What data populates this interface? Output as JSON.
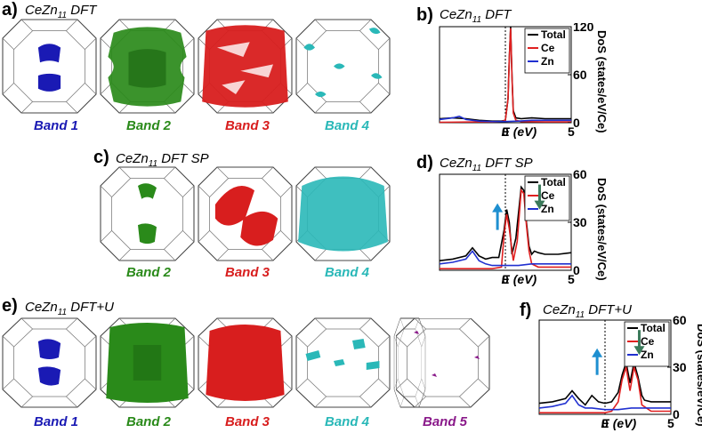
{
  "colors": {
    "band1": "#1a1ab4",
    "band2": "#2a8a1a",
    "band3": "#d81e1e",
    "band4": "#2ab8b8",
    "band5": "#8a1a8a",
    "total": "#000000",
    "ce": "#e02020",
    "zn": "#2030d0",
    "arrow_up": "#1e8fd0",
    "arrow_down": "#3a7a5a"
  },
  "panels": {
    "a": {
      "label": "a)",
      "title_pre": "CeZn",
      "title_sub": "11",
      "title_post": " DFT",
      "bands": [
        "Band 1",
        "Band 2",
        "Band 3",
        "Band 4"
      ]
    },
    "c": {
      "label": "c)",
      "title_pre": "CeZn",
      "title_sub": "11",
      "title_post": " DFT SP",
      "bands": [
        "Band 2",
        "Band 3",
        "Band 4"
      ]
    },
    "e": {
      "label": "e)",
      "title_pre": "CeZn",
      "title_sub": "11",
      "title_post": " DFT+U",
      "bands": [
        "Band 1",
        "Band 2",
        "Band 3",
        "Band 4",
        "Band 5"
      ]
    },
    "b": {
      "label": "b)",
      "title_pre": "CeZn",
      "title_sub": "11",
      "title_post": " DFT"
    },
    "d": {
      "label": "d)",
      "title_pre": "CeZn",
      "title_sub": "11",
      "title_post": " DFT SP"
    },
    "f": {
      "label": "f)",
      "title_pre": "CeZn",
      "title_sub": "11",
      "title_post": " DFT+U"
    }
  },
  "chart_data": [
    {
      "panel": "b",
      "type": "line",
      "xlabel": "E (eV)",
      "ylabel": "DoS (states/eV/Ce)",
      "xlim": [
        -5,
        5
      ],
      "ylim": [
        0,
        120
      ],
      "xticks": [
        "0",
        "5"
      ],
      "yticks": [
        "0",
        "60",
        "120"
      ],
      "legend": [
        "Total",
        "Ce",
        "Zn"
      ],
      "legend_position": "top-right",
      "fermi_line_x": 0,
      "series": [
        {
          "name": "Total",
          "x": [
            -5,
            -4,
            -3,
            -2,
            -1,
            -0.3,
            0,
            0.2,
            0.3,
            0.4,
            0.5,
            0.6,
            0.8,
            1.2,
            2,
            3,
            4,
            5
          ],
          "values": [
            5,
            6,
            5,
            3,
            2,
            2,
            3,
            30,
            80,
            120,
            60,
            15,
            6,
            5,
            6,
            5,
            5,
            5
          ]
        },
        {
          "name": "Ce",
          "x": [
            -5,
            -2,
            -1,
            -0.3,
            0,
            0.2,
            0.3,
            0.4,
            0.5,
            0.6,
            0.8,
            1.2,
            3,
            5
          ],
          "values": [
            0.5,
            1,
            1,
            1.5,
            3,
            30,
            80,
            118,
            58,
            12,
            3,
            1.5,
            1,
            1
          ]
        },
        {
          "name": "Zn",
          "x": [
            -5,
            -4,
            -3.5,
            -3,
            -2,
            -1,
            0,
            1,
            2,
            3,
            4,
            5
          ],
          "values": [
            4,
            6,
            8,
            4,
            2,
            1.5,
            1.5,
            2,
            3,
            3,
            3,
            3
          ]
        }
      ]
    },
    {
      "panel": "d",
      "type": "line",
      "xlabel": "E (eV)",
      "ylabel": "DoS (states/eV/Ce)",
      "xlim": [
        -5,
        5
      ],
      "ylim": [
        0,
        60
      ],
      "xticks": [
        "0",
        "5"
      ],
      "yticks": [
        "0",
        "30",
        "60"
      ],
      "legend": [
        "Total",
        "Ce",
        "Zn"
      ],
      "legend_position": "top-right",
      "fermi_line_x": 0,
      "arrows": [
        "up",
        "down"
      ],
      "series": [
        {
          "name": "Total",
          "x": [
            -5,
            -4,
            -3,
            -2.5,
            -2,
            -1.5,
            -1,
            -0.5,
            -0.1,
            0.1,
            0.3,
            0.5,
            0.8,
            1.2,
            1.4,
            1.6,
            1.8,
            2,
            2.2,
            2.5,
            3,
            4,
            5
          ],
          "values": [
            6,
            7,
            9,
            14,
            9,
            7,
            8,
            8,
            25,
            38,
            30,
            10,
            20,
            52,
            50,
            30,
            15,
            10,
            12,
            11,
            10,
            10,
            11
          ]
        },
        {
          "name": "Ce",
          "x": [
            -5,
            -1,
            -0.3,
            -0.1,
            0.1,
            0.3,
            0.6,
            0.9,
            1.2,
            1.4,
            1.6,
            1.8,
            2,
            2.5,
            5
          ],
          "values": [
            1,
            1,
            2,
            22,
            35,
            26,
            6,
            18,
            50,
            48,
            28,
            12,
            4,
            2,
            2
          ]
        },
        {
          "name": "Zn",
          "x": [
            -5,
            -4,
            -3,
            -2.5,
            -2,
            -1.5,
            -1,
            0,
            1,
            2,
            3,
            4,
            5
          ],
          "values": [
            4,
            5,
            7,
            12,
            6,
            4,
            3,
            3,
            3,
            4,
            4,
            4,
            4
          ]
        }
      ]
    },
    {
      "panel": "f",
      "type": "line",
      "xlabel": "E (eV)",
      "ylabel": "DoS (states/eV/Ce)",
      "xlim": [
        -5,
        5
      ],
      "ylim": [
        0,
        60
      ],
      "xticks": [
        "0",
        "5"
      ],
      "yticks": [
        "0",
        "30",
        "60"
      ],
      "legend": [
        "Total",
        "Ce",
        "Zn"
      ],
      "legend_position": "top-right",
      "fermi_line_x": 0,
      "arrows": [
        "up",
        "down"
      ],
      "series": [
        {
          "name": "Total",
          "x": [
            -5,
            -4,
            -3,
            -2.5,
            -2,
            -1.5,
            -1,
            -0.5,
            0,
            0.5,
            1,
            1.3,
            1.6,
            1.9,
            2.2,
            2.5,
            2.8,
            3,
            3.5,
            4,
            5
          ],
          "values": [
            7,
            8,
            10,
            15,
            10,
            6,
            12,
            8,
            7,
            8,
            14,
            25,
            33,
            20,
            33,
            24,
            12,
            9,
            8,
            8,
            8
          ]
        },
        {
          "name": "Ce",
          "x": [
            -5,
            0,
            0.5,
            1,
            1.3,
            1.6,
            1.9,
            2.2,
            2.5,
            2.8,
            3.5,
            5
          ],
          "values": [
            1,
            1,
            2,
            8,
            22,
            30,
            15,
            30,
            22,
            6,
            2,
            2
          ]
        },
        {
          "name": "Zn",
          "x": [
            -5,
            -4,
            -3,
            -2.5,
            -2,
            -1.5,
            -1,
            0,
            1,
            2,
            3,
            4,
            5
          ],
          "values": [
            4,
            5,
            7,
            12,
            6,
            4,
            4,
            3,
            3,
            4,
            4,
            4,
            4
          ]
        }
      ]
    }
  ]
}
